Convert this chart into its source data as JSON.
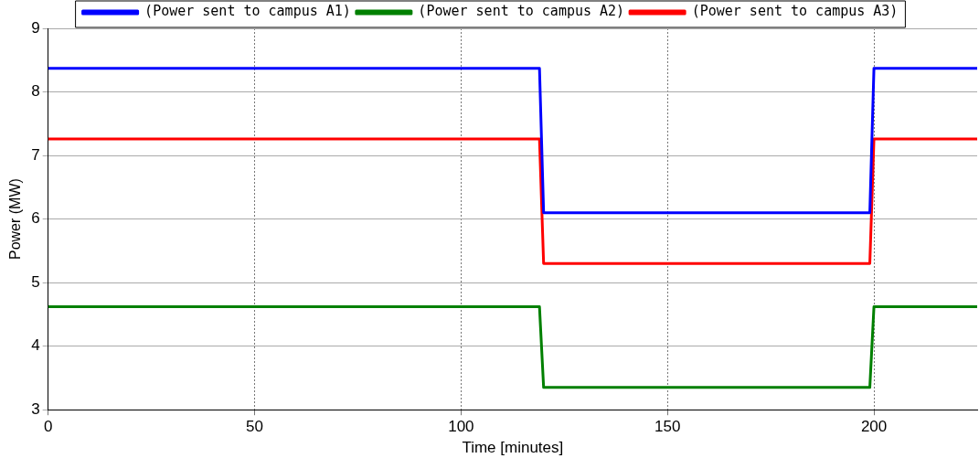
{
  "chart_data": {
    "type": "line",
    "xlabel": "Time [minutes]",
    "ylabel": "Power (MW)",
    "series": [
      {
        "name": "(Power sent to campus A1)",
        "color": "#0000ff",
        "x": [
          0,
          119,
          120,
          199,
          200,
          225
        ],
        "values": [
          8.37,
          8.37,
          6.1,
          6.1,
          8.37,
          8.37
        ]
      },
      {
        "name": "(Power sent to campus A2)",
        "color": "#008000",
        "x": [
          0,
          119,
          120,
          199,
          200,
          225
        ],
        "values": [
          4.62,
          4.62,
          3.35,
          3.35,
          4.62,
          4.62
        ]
      },
      {
        "name": "(Power sent to campus A3)",
        "color": "#ff0000",
        "x": [
          0,
          119,
          120,
          199,
          200,
          225
        ],
        "values": [
          7.26,
          7.26,
          5.3,
          5.3,
          7.26,
          7.26
        ]
      }
    ],
    "xlim": [
      0,
      225
    ],
    "xticks": [
      0,
      50,
      100,
      150,
      200
    ],
    "ylim": [
      3,
      9
    ],
    "yticks": [
      3,
      4,
      5,
      6,
      7,
      8,
      9
    ],
    "grid": true,
    "legend": "top",
    "marker": "none",
    "line_style": "solid"
  }
}
